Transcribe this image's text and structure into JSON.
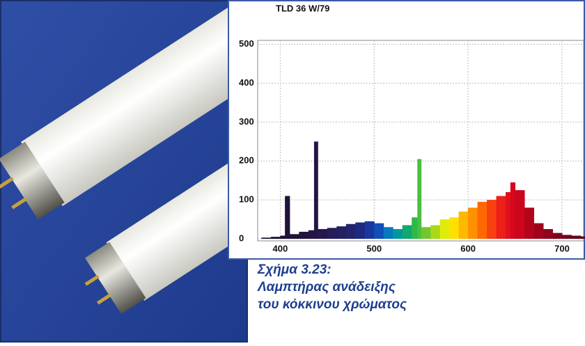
{
  "chart_data": {
    "type": "spectrum",
    "title": "TLD 36 W/79",
    "x": [
      380,
      390,
      400,
      405,
      410,
      420,
      430,
      436,
      440,
      450,
      460,
      470,
      480,
      490,
      500,
      510,
      520,
      530,
      540,
      546,
      550,
      560,
      570,
      580,
      590,
      600,
      610,
      620,
      630,
      640,
      645,
      650,
      660,
      670,
      680,
      690,
      700,
      710,
      720
    ],
    "values": [
      3,
      5,
      8,
      110,
      12,
      18,
      22,
      250,
      25,
      28,
      32,
      38,
      42,
      45,
      40,
      30,
      25,
      35,
      55,
      205,
      30,
      35,
      50,
      55,
      70,
      80,
      95,
      100,
      110,
      120,
      145,
      125,
      80,
      40,
      25,
      15,
      10,
      8,
      6
    ],
    "colors": [
      "#1a0f2a",
      "#1c1030",
      "#1e1034",
      "#201238",
      "#201238",
      "#22143e",
      "#241644",
      "#241644",
      "#26184c",
      "#261c56",
      "#242062",
      "#22246e",
      "#1e2a80",
      "#1838a0",
      "#1050b8",
      "#0878c0",
      "#0098a0",
      "#10a870",
      "#30b848",
      "#48c040",
      "#70c830",
      "#a8d818",
      "#e0ec08",
      "#ffe000",
      "#ffb800",
      "#ff9000",
      "#ff6800",
      "#f84010",
      "#ec2018",
      "#e0101c",
      "#d8081c",
      "#cc061c",
      "#b4041c",
      "#a0041c",
      "#90041c",
      "#80041c",
      "#70041c",
      "#64041c",
      "#58041c"
    ],
    "xlim": [
      376,
      723
    ],
    "ylim": [
      0,
      510
    ],
    "xticks": [
      400,
      500,
      600,
      700
    ],
    "yticks": [
      0,
      100,
      200,
      300,
      400,
      500
    ],
    "grid": true
  },
  "caption": [
    "Σχήμα 3.23:",
    "Λαμπτήρας ανάδειξης",
    "του κόκκινου χρώματος"
  ]
}
